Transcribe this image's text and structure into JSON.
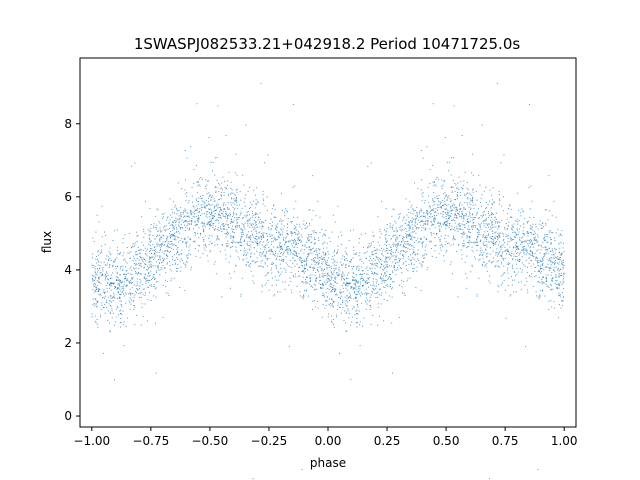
{
  "chart_data": {
    "type": "scatter",
    "title": "1SWASPJ082533.21+042918.2 Period 10471725.0s",
    "xlabel": "phase",
    "ylabel": "flux",
    "xlim": [
      -1.05,
      1.05
    ],
    "ylim": [
      -0.3,
      9.8
    ],
    "xticks": [
      -1.0,
      -0.75,
      -0.5,
      -0.25,
      0.0,
      0.25,
      0.5,
      0.75,
      1.0
    ],
    "xtick_labels": [
      "−1.00",
      "−0.75",
      "−0.50",
      "−0.25",
      "0.00",
      "0.25",
      "0.50",
      "0.75",
      "1.00"
    ],
    "yticks": [
      0,
      2,
      4,
      6,
      8
    ],
    "ytick_labels": [
      "0",
      "2",
      "4",
      "6",
      "8"
    ],
    "grid": false,
    "point_color": "#1f77b4",
    "series": [
      {
        "trend_phase": [
          0.0,
          0.05,
          0.1,
          0.15,
          0.2,
          0.25,
          0.3,
          0.35,
          0.4,
          0.45,
          0.5,
          0.55,
          0.6,
          0.65,
          0.7,
          0.75,
          0.8,
          0.85,
          0.9,
          0.95,
          1.0
        ],
        "trend_flux": [
          3.8,
          3.6,
          3.4,
          3.7,
          4.0,
          4.2,
          4.5,
          4.9,
          5.2,
          5.5,
          5.6,
          5.5,
          5.3,
          5.0,
          4.9,
          4.8,
          4.7,
          4.6,
          4.4,
          4.1,
          3.8
        ]
      }
    ]
  }
}
